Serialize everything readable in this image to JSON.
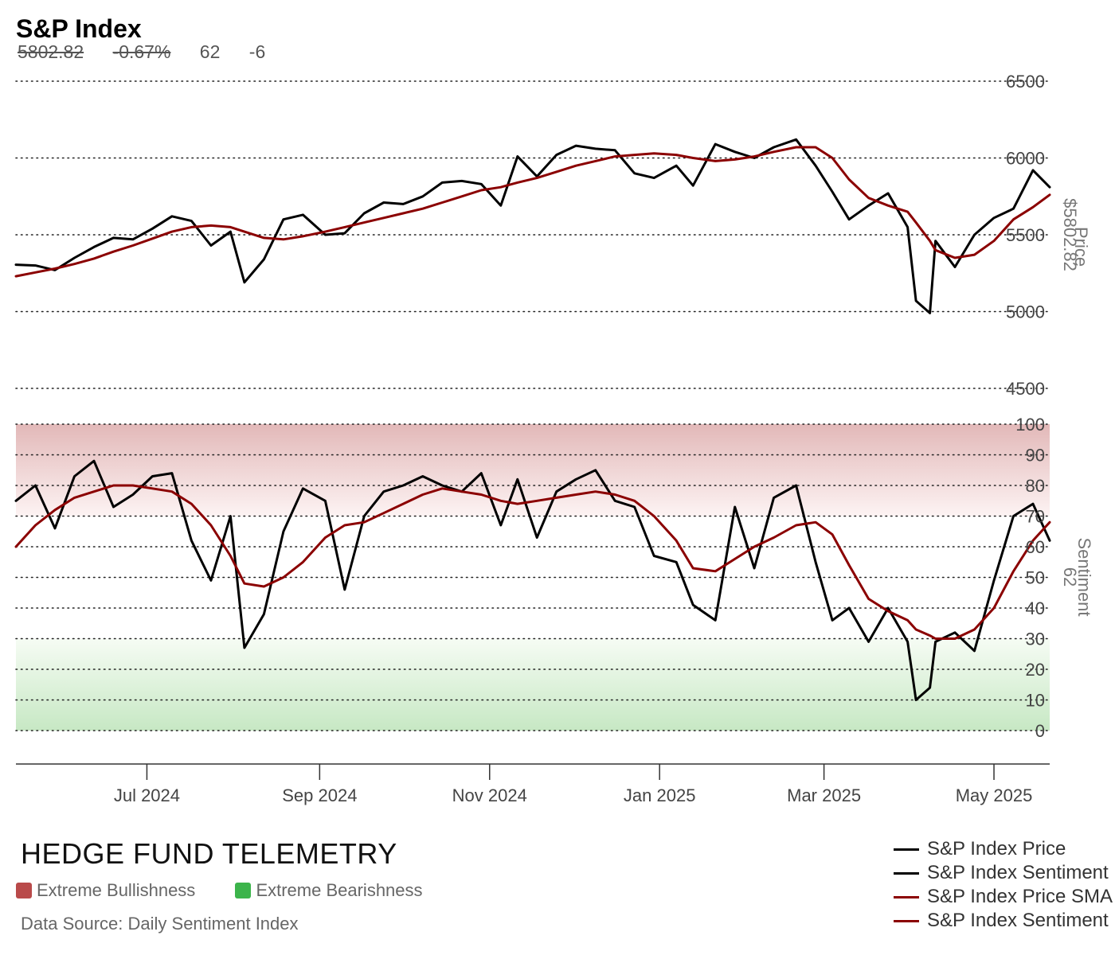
{
  "header": {
    "title": "S&P Index",
    "price": "5802.82",
    "change": "-0.67%",
    "sentiment": "62",
    "sentiment_change": "-6"
  },
  "axes": {
    "price_title": "Price",
    "price_value": "$5802.82",
    "sentiment_title": "Sentiment",
    "sentiment_value": "62"
  },
  "footer": {
    "brand": "HEDGE FUND TELEMETRY",
    "source": "Data Source: Daily Sentiment Index",
    "zones": [
      {
        "label": "Extreme Bullishness",
        "color": "#b94a4a"
      },
      {
        "label": "Extreme Bearishness",
        "color": "#3cb44b"
      }
    ]
  },
  "legend": [
    {
      "label": "S&P Index Price",
      "color": "#000000"
    },
    {
      "label": "S&P Index Sentiment",
      "color": "#000000"
    },
    {
      "label": "S&P Index Price SMA",
      "color": "#8b0000"
    },
    {
      "label": "S&P Index Sentiment",
      "color": "#8b0000"
    }
  ],
  "chart_data": [
    {
      "type": "line",
      "title": "S&P Index",
      "ylabel": "Price",
      "ylim": [
        4500,
        6500
      ],
      "yticks": [
        4500,
        5000,
        5500,
        6000,
        6500
      ],
      "x_tick_labels": [
        "Jul 2024",
        "Sep 2024",
        "Nov 2024",
        "Jan 2025",
        "Mar 2025",
        "May 2025"
      ],
      "x": [
        "2024-05-15",
        "2024-05-22",
        "2024-05-29",
        "2024-06-05",
        "2024-06-12",
        "2024-06-19",
        "2024-06-26",
        "2024-07-03",
        "2024-07-10",
        "2024-07-17",
        "2024-07-24",
        "2024-07-31",
        "2024-08-05",
        "2024-08-12",
        "2024-08-19",
        "2024-08-26",
        "2024-09-03",
        "2024-09-10",
        "2024-09-17",
        "2024-09-24",
        "2024-10-01",
        "2024-10-08",
        "2024-10-15",
        "2024-10-22",
        "2024-10-29",
        "2024-11-05",
        "2024-11-11",
        "2024-11-18",
        "2024-11-25",
        "2024-12-02",
        "2024-12-09",
        "2024-12-16",
        "2024-12-23",
        "2024-12-30",
        "2025-01-07",
        "2025-01-13",
        "2025-01-21",
        "2025-01-28",
        "2025-02-04",
        "2025-02-11",
        "2025-02-19",
        "2025-02-26",
        "2025-03-04",
        "2025-03-10",
        "2025-03-17",
        "2025-03-24",
        "2025-03-31",
        "2025-04-03",
        "2025-04-08",
        "2025-04-10",
        "2025-04-17",
        "2025-04-24",
        "2025-05-01",
        "2025-05-08",
        "2025-05-15",
        "2025-05-21"
      ],
      "series": [
        {
          "name": "S&P Index Price",
          "color": "#000000",
          "values": [
            5305,
            5300,
            5270,
            5350,
            5420,
            5480,
            5470,
            5540,
            5620,
            5590,
            5430,
            5520,
            5190,
            5340,
            5600,
            5630,
            5500,
            5510,
            5640,
            5710,
            5700,
            5750,
            5840,
            5850,
            5830,
            5690,
            6010,
            5880,
            6020,
            6080,
            6060,
            6050,
            5900,
            5870,
            5950,
            5820,
            6090,
            6040,
            6000,
            6070,
            6120,
            5950,
            5780,
            5600,
            5690,
            5770,
            5550,
            5070,
            4990,
            5460,
            5290,
            5500,
            5610,
            5670,
            5920,
            5810
          ]
        },
        {
          "name": "S&P Index Price SMA",
          "color": "#8b0000",
          "values": [
            5230,
            5255,
            5280,
            5310,
            5345,
            5390,
            5430,
            5475,
            5520,
            5550,
            5560,
            5550,
            5520,
            5480,
            5470,
            5490,
            5520,
            5550,
            5580,
            5610,
            5640,
            5670,
            5710,
            5750,
            5790,
            5810,
            5840,
            5870,
            5910,
            5950,
            5980,
            6010,
            6020,
            6030,
            6020,
            6000,
            5980,
            5990,
            6010,
            6040,
            6070,
            6070,
            6000,
            5860,
            5740,
            5690,
            5650,
            5580,
            5460,
            5400,
            5350,
            5370,
            5460,
            5600,
            5680,
            5760
          ]
        }
      ]
    },
    {
      "type": "line",
      "ylabel": "Sentiment",
      "ylim": [
        0,
        100
      ],
      "yticks": [
        0,
        10,
        20,
        30,
        40,
        50,
        60,
        70,
        80,
        90,
        100
      ],
      "x_tick_labels": [
        "Jul 2024",
        "Sep 2024",
        "Nov 2024",
        "Jan 2025",
        "Mar 2025",
        "May 2025"
      ],
      "x": [
        "2024-05-15",
        "2024-05-22",
        "2024-05-29",
        "2024-06-05",
        "2024-06-12",
        "2024-06-19",
        "2024-06-26",
        "2024-07-03",
        "2024-07-10",
        "2024-07-17",
        "2024-07-24",
        "2024-07-31",
        "2024-08-05",
        "2024-08-12",
        "2024-08-19",
        "2024-08-26",
        "2024-09-03",
        "2024-09-10",
        "2024-09-17",
        "2024-09-24",
        "2024-10-01",
        "2024-10-08",
        "2024-10-15",
        "2024-10-22",
        "2024-10-29",
        "2024-11-05",
        "2024-11-11",
        "2024-11-18",
        "2024-11-25",
        "2024-12-02",
        "2024-12-09",
        "2024-12-16",
        "2024-12-23",
        "2024-12-30",
        "2025-01-07",
        "2025-01-13",
        "2025-01-21",
        "2025-01-28",
        "2025-02-04",
        "2025-02-11",
        "2025-02-19",
        "2025-02-26",
        "2025-03-04",
        "2025-03-10",
        "2025-03-17",
        "2025-03-24",
        "2025-03-31",
        "2025-04-03",
        "2025-04-08",
        "2025-04-10",
        "2025-04-17",
        "2025-04-24",
        "2025-05-01",
        "2025-05-08",
        "2025-05-15",
        "2025-05-21"
      ],
      "zones": [
        {
          "label": "Extreme Bullishness",
          "range": [
            70,
            100
          ]
        },
        {
          "label": "Extreme Bearishness",
          "range": [
            0,
            30
          ]
        }
      ],
      "series": [
        {
          "name": "S&P Index Sentiment",
          "color": "#000000",
          "values": [
            75,
            80,
            66,
            83,
            88,
            73,
            77,
            83,
            84,
            62,
            49,
            70,
            27,
            38,
            65,
            79,
            75,
            46,
            70,
            78,
            80,
            83,
            80,
            78,
            84,
            67,
            82,
            63,
            78,
            82,
            85,
            75,
            73,
            57,
            55,
            41,
            36,
            73,
            53,
            76,
            80,
            55,
            36,
            40,
            29,
            40,
            29,
            10,
            14,
            29,
            32,
            26,
            49,
            70,
            74,
            62
          ]
        },
        {
          "name": "S&P Index Sentiment",
          "color": "#8b0000",
          "values": [
            60,
            67,
            72,
            76,
            78,
            80,
            80,
            79,
            78,
            74,
            67,
            57,
            48,
            47,
            50,
            55,
            63,
            67,
            68,
            71,
            74,
            77,
            79,
            78,
            77,
            75,
            74,
            75,
            76,
            77,
            78,
            77,
            75,
            70,
            62,
            53,
            52,
            56,
            60,
            63,
            67,
            68,
            64,
            54,
            43,
            39,
            36,
            33,
            31,
            30,
            30,
            33,
            40,
            52,
            62,
            68
          ]
        }
      ]
    }
  ]
}
